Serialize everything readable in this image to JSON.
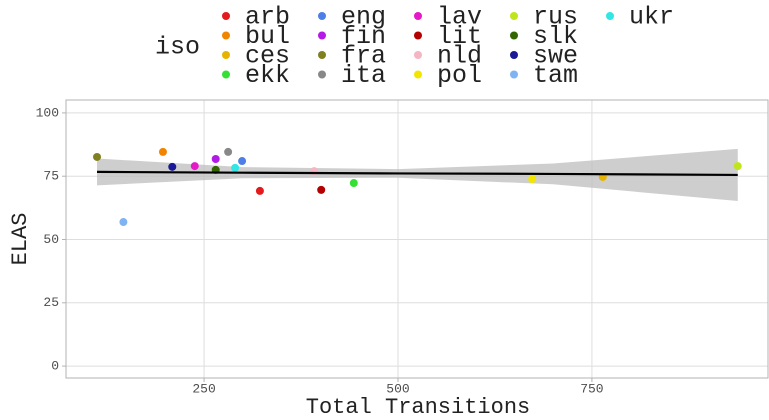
{
  "chart_data": {
    "type": "scatter",
    "x_label": "Total Transitions",
    "y_label": "ELAS",
    "legend_title": "iso",
    "xlim": [
      72,
      977
    ],
    "ylim": [
      -4.7,
      105.1
    ],
    "xticks": [
      250,
      500,
      750
    ],
    "yticks": [
      0,
      25,
      50,
      75,
      100
    ],
    "grid": true,
    "series": [
      {
        "name": "arb",
        "color": "#e41a1c",
        "x": [
          322
        ],
        "values": [
          69.2
        ]
      },
      {
        "name": "bul",
        "color": "#f28500",
        "x": [
          197
        ],
        "values": [
          84.6
        ]
      },
      {
        "name": "ces",
        "color": "#e6b400",
        "x": [
          764
        ],
        "values": [
          74.7
        ]
      },
      {
        "name": "ekk",
        "color": "#33e033",
        "x": [
          443
        ],
        "values": [
          72.3
        ]
      },
      {
        "name": "eng",
        "color": "#4d7fe6",
        "x": [
          299
        ],
        "values": [
          81.0
        ]
      },
      {
        "name": "fin",
        "color": "#b31ae6",
        "x": [
          265
        ],
        "values": [
          81.8
        ]
      },
      {
        "name": "fra",
        "color": "#808020",
        "x": [
          112
        ],
        "values": [
          82.6
        ]
      },
      {
        "name": "ita",
        "color": "#888888",
        "x": [
          281
        ],
        "values": [
          84.6
        ]
      },
      {
        "name": "lav",
        "color": "#e619c8",
        "x": [
          238
        ],
        "values": [
          79.0
        ]
      },
      {
        "name": "lit",
        "color": "#b30000",
        "x": [
          401
        ],
        "values": [
          69.6
        ]
      },
      {
        "name": "nld",
        "color": "#f4b6c2",
        "x": [
          392
        ],
        "values": [
          77.0
        ]
      },
      {
        "name": "pol",
        "color": "#f2e600",
        "x": [
          673
        ],
        "values": [
          73.9
        ]
      },
      {
        "name": "rus",
        "color": "#bfe61a",
        "x": [
          938
        ],
        "values": [
          79.0
        ]
      },
      {
        "name": "slk",
        "color": "#336600",
        "x": [
          265
        ],
        "values": [
          77.5
        ]
      },
      {
        "name": "swe",
        "color": "#1a1a99",
        "x": [
          209
        ],
        "values": [
          78.7
        ]
      },
      {
        "name": "tam",
        "color": "#80b3f2",
        "x": [
          146
        ],
        "values": [
          56.9
        ]
      },
      {
        "name": "ukr",
        "color": "#33e6e6",
        "x": [
          290
        ],
        "values": [
          78.3
        ]
      }
    ],
    "regression": {
      "color": "#000000",
      "band_color": "#bdbdbd",
      "x": [
        112,
        300,
        500,
        700,
        938
      ],
      "values": [
        76.7,
        76.4,
        76.1,
        75.9,
        75.5
      ],
      "lower": [
        71.4,
        74.2,
        74.4,
        71.8,
        65.2
      ],
      "upper": [
        82.0,
        78.6,
        77.8,
        80.0,
        85.8
      ]
    }
  }
}
